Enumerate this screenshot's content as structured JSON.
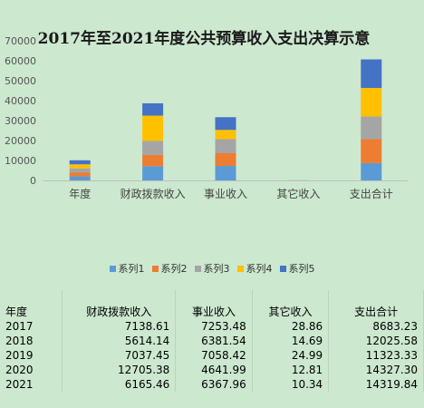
{
  "chart_data": {
    "type": "bar",
    "stacked": true,
    "title": "2017年至2021年度公共预算收入支出决算示意",
    "categories": [
      "年度",
      "财政拨款收入",
      "事业收入",
      "其它收入",
      "支出合计"
    ],
    "series": [
      {
        "name": "系列1",
        "color": "#5b9bd5",
        "values": [
          2017,
          7138.61,
          7253.48,
          28.86,
          8683.23
        ]
      },
      {
        "name": "系列2",
        "color": "#ed7d31",
        "values": [
          2018,
          5614.14,
          6381.54,
          14.69,
          12025.58
        ]
      },
      {
        "name": "系列3",
        "color": "#a5a5a5",
        "values": [
          2019,
          7037.45,
          7058.42,
          24.99,
          11323.33
        ]
      },
      {
        "name": "系列4",
        "color": "#ffc000",
        "values": [
          2020,
          12705.38,
          4641.99,
          12.81,
          14327.3
        ]
      },
      {
        "name": "系列5",
        "color": "#4472c4",
        "values": [
          2021,
          6165.46,
          6367.96,
          10.34,
          14319.84
        ]
      }
    ],
    "ylim": [
      0,
      70000
    ],
    "yticks": [
      "0",
      "10000",
      "20000",
      "30000",
      "40000",
      "50000",
      "60000",
      "70000"
    ],
    "legend_position": "bottom",
    "grid": false
  },
  "table": {
    "headers": [
      "年度",
      "财政拨款收入",
      "事业收入",
      "其它收入",
      "支出合计"
    ],
    "rows": [
      [
        "2017",
        "7138.61",
        "7253.48",
        "28.86",
        "8683.23"
      ],
      [
        "2018",
        "5614.14",
        "6381.54",
        "14.69",
        "12025.58"
      ],
      [
        "2019",
        "7037.45",
        "7058.42",
        "24.99",
        "11323.33"
      ],
      [
        "2020",
        "12705.38",
        "4641.99",
        "12.81",
        "14327.30"
      ],
      [
        "2021",
        "6165.46",
        "6367.96",
        "10.34",
        "14319.84"
      ]
    ]
  }
}
